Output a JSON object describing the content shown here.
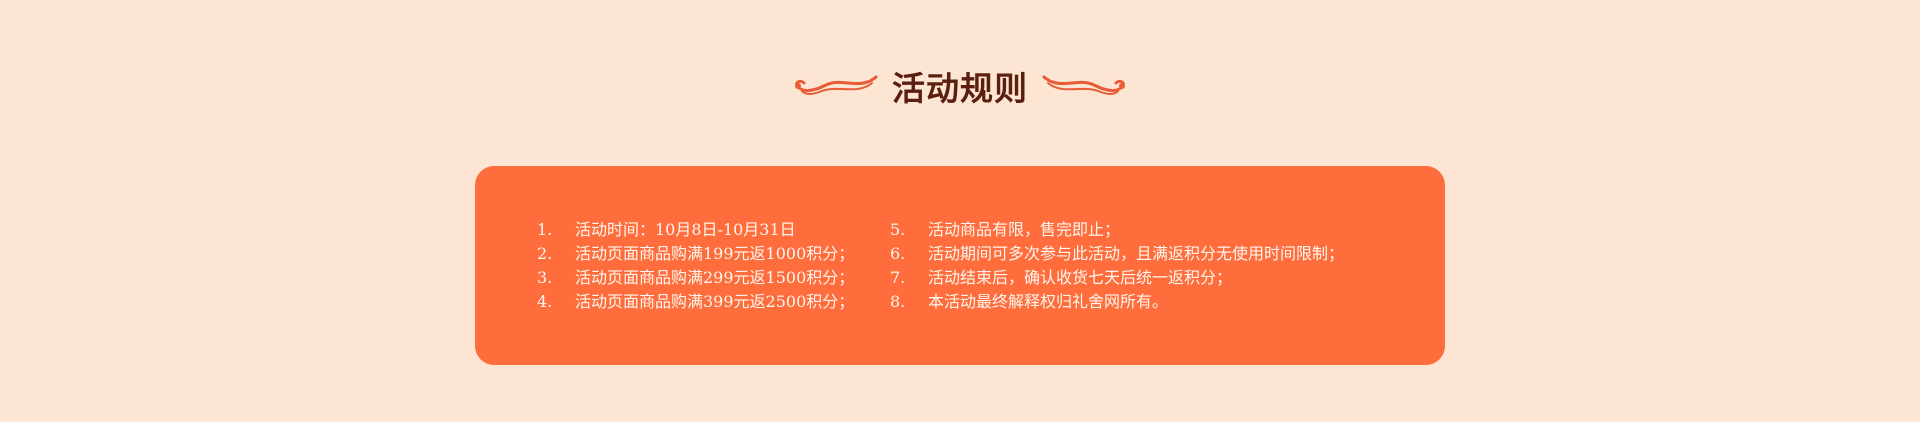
{
  "section": {
    "title": "活动规则"
  },
  "rules": {
    "left": [
      {
        "num": "1.",
        "text": "活动时间：10月8日-10月31日"
      },
      {
        "num": "2.",
        "text": "活动页面商品购满199元返1000积分；"
      },
      {
        "num": "3.",
        "text": "活动页面商品购满299元返1500积分；"
      },
      {
        "num": "4.",
        "text": "活动页面商品购满399元返2500积分；"
      }
    ],
    "right": [
      {
        "num": "5.",
        "text": "活动商品有限，售完即止；"
      },
      {
        "num": "6.",
        "text": "活动期间可多次参与此活动，且满返积分无使用时间限制；"
      },
      {
        "num": "7.",
        "text": "活动结束后，确认收货七天后统一返积分；"
      },
      {
        "num": "8.",
        "text": "本活动最终解释权归礼舍网所有。"
      }
    ]
  },
  "colors": {
    "background": "#fde5d4",
    "card": "#ff6d3d",
    "title": "#5a1f0e",
    "ornament": "#e95a35",
    "rule_text": "#fff6ee"
  }
}
